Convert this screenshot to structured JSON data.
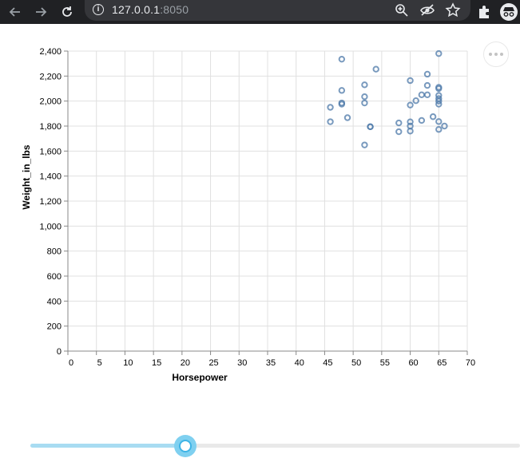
{
  "browser": {
    "url_host": "127.0.0.1",
    "url_port": ":8050",
    "back_icon": "back-arrow-icon",
    "forward_icon": "forward-arrow-icon",
    "reload_icon": "reload-icon"
  },
  "colors": {
    "point_stroke": "#4c78a8",
    "grid": "#e0e0e0",
    "axis": "#888888",
    "slider_fill": "#a8dcf2",
    "slider_handle": "#3fb4e6"
  },
  "slider": {
    "value_fraction": 0.317
  },
  "chart_data": {
    "type": "scatter",
    "xlabel": "Horsepower",
    "ylabel": "Weight_in_lbs",
    "xlim": [
      0,
      70
    ],
    "ylim": [
      0,
      2400
    ],
    "x_ticks": [
      "0",
      "5",
      "10",
      "15",
      "20",
      "25",
      "30",
      "35",
      "40",
      "45",
      "50",
      "55",
      "60",
      "65",
      "70"
    ],
    "y_ticks": [
      "0",
      "200",
      "400",
      "600",
      "800",
      "1,000",
      "1,200",
      "1,400",
      "1,600",
      "1,800",
      "2,000",
      "2,200",
      "2,400"
    ],
    "grid": true,
    "points": [
      {
        "x": 65,
        "y": 2380
      },
      {
        "x": 48,
        "y": 2335
      },
      {
        "x": 54,
        "y": 2255
      },
      {
        "x": 63,
        "y": 2215
      },
      {
        "x": 60,
        "y": 2164
      },
      {
        "x": 52,
        "y": 2130
      },
      {
        "x": 63,
        "y": 2125
      },
      {
        "x": 65,
        "y": 2110
      },
      {
        "x": 65,
        "y": 2100
      },
      {
        "x": 48,
        "y": 2085
      },
      {
        "x": 62,
        "y": 2050
      },
      {
        "x": 63,
        "y": 2050
      },
      {
        "x": 65,
        "y": 2045
      },
      {
        "x": 52,
        "y": 2035
      },
      {
        "x": 65,
        "y": 2020
      },
      {
        "x": 61,
        "y": 2003
      },
      {
        "x": 65,
        "y": 2000
      },
      {
        "x": 52,
        "y": 1985
      },
      {
        "x": 48,
        "y": 1985
      },
      {
        "x": 48,
        "y": 1975
      },
      {
        "x": 65,
        "y": 1975
      },
      {
        "x": 60,
        "y": 1968
      },
      {
        "x": 46,
        "y": 1950
      },
      {
        "x": 64,
        "y": 1875
      },
      {
        "x": 49,
        "y": 1867
      },
      {
        "x": 62,
        "y": 1845
      },
      {
        "x": 46,
        "y": 1835
      },
      {
        "x": 60,
        "y": 1834
      },
      {
        "x": 65,
        "y": 1836
      },
      {
        "x": 58,
        "y": 1825
      },
      {
        "x": 66,
        "y": 1800
      },
      {
        "x": 53,
        "y": 1795
      },
      {
        "x": 53,
        "y": 1795
      },
      {
        "x": 60,
        "y": 1800
      },
      {
        "x": 65,
        "y": 1773
      },
      {
        "x": 58,
        "y": 1755
      },
      {
        "x": 60,
        "y": 1760
      },
      {
        "x": 52,
        "y": 1649
      }
    ]
  }
}
